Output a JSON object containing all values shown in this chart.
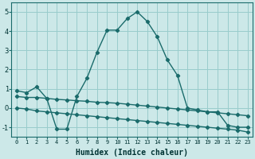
{
  "x": [
    0,
    1,
    2,
    3,
    4,
    5,
    6,
    7,
    8,
    9,
    10,
    11,
    12,
    13,
    14,
    15,
    16,
    17,
    18,
    19,
    20,
    21,
    22,
    23
  ],
  "main_curve": [
    0.9,
    0.8,
    1.1,
    0.5,
    -1.1,
    -1.1,
    0.6,
    1.55,
    2.9,
    4.05,
    4.05,
    4.65,
    5.0,
    4.5,
    3.7,
    2.5,
    1.7,
    0.0,
    -0.1,
    -0.2,
    -0.2,
    -0.9,
    -1.0,
    -1.0
  ],
  "line1": [
    0.6,
    0.55,
    0.55,
    0.5,
    0.45,
    0.42,
    0.38,
    0.35,
    0.3,
    0.28,
    0.25,
    0.2,
    0.15,
    0.1,
    0.05,
    0.0,
    -0.05,
    -0.1,
    -0.15,
    -0.2,
    -0.25,
    -0.3,
    -0.35,
    -0.4
  ],
  "line2": [
    0.0,
    -0.05,
    -0.15,
    -0.2,
    -0.25,
    -0.3,
    -0.35,
    -0.4,
    -0.45,
    -0.5,
    -0.55,
    -0.6,
    -0.65,
    -0.7,
    -0.75,
    -0.8,
    -0.85,
    -0.9,
    -0.95,
    -1.0,
    -1.05,
    -1.1,
    -1.15,
    -1.25
  ],
  "bg_color": "#cce8e8",
  "grid_color": "#99cccc",
  "line_color": "#1a6b6b",
  "xlabel": "Humidex (Indice chaleur)",
  "ylim": [
    -1.5,
    5.5
  ],
  "xlim": [
    -0.5,
    23.5
  ],
  "yticks": [
    -1,
    0,
    1,
    2,
    3,
    4,
    5
  ],
  "xticks": [
    0,
    1,
    2,
    3,
    4,
    5,
    6,
    7,
    8,
    9,
    10,
    11,
    12,
    13,
    14,
    15,
    16,
    17,
    18,
    19,
    20,
    21,
    22,
    23
  ],
  "xlabel_fontsize": 7,
  "ytick_fontsize": 6,
  "xtick_fontsize": 5
}
